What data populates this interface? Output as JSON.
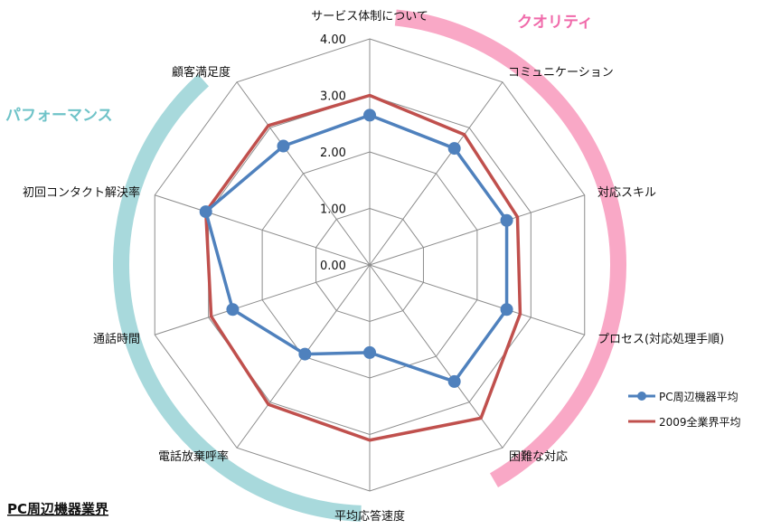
{
  "chart_data": {
    "type": "radar",
    "title": "",
    "axes": [
      "サービス体制について",
      "コミュニケーション",
      "対応スキル",
      "プロセス(対応処理手順)",
      "困難な対応",
      "平均応答速度",
      "電話放棄呼率",
      "通話時間",
      "初回コンタクト解決率",
      "顧客満足度"
    ],
    "ticks": [
      "0.00",
      "1.00",
      "2.00",
      "3.00",
      "4.00"
    ],
    "rmax": 4,
    "series": [
      {
        "name": "PC周辺機器平均",
        "color": "#4F81BD",
        "marker": "circle",
        "values": [
          2.65,
          2.55,
          2.55,
          2.55,
          2.55,
          1.55,
          1.95,
          2.55,
          3.05,
          2.6
        ]
      },
      {
        "name": "2009全業界平均",
        "color": "#C0504D",
        "marker": "none",
        "values": [
          3.0,
          2.85,
          2.75,
          2.8,
          3.35,
          3.1,
          3.05,
          2.95,
          3.05,
          3.05
        ]
      }
    ],
    "groups": [
      {
        "label": "クオリティ",
        "color": "#F9A8C6"
      },
      {
        "label": "パフォーマンス",
        "color": "#A8D9DC"
      }
    ],
    "legend_position": "bottom-right",
    "grid": true
  },
  "footer": "PC周辺機器業界"
}
